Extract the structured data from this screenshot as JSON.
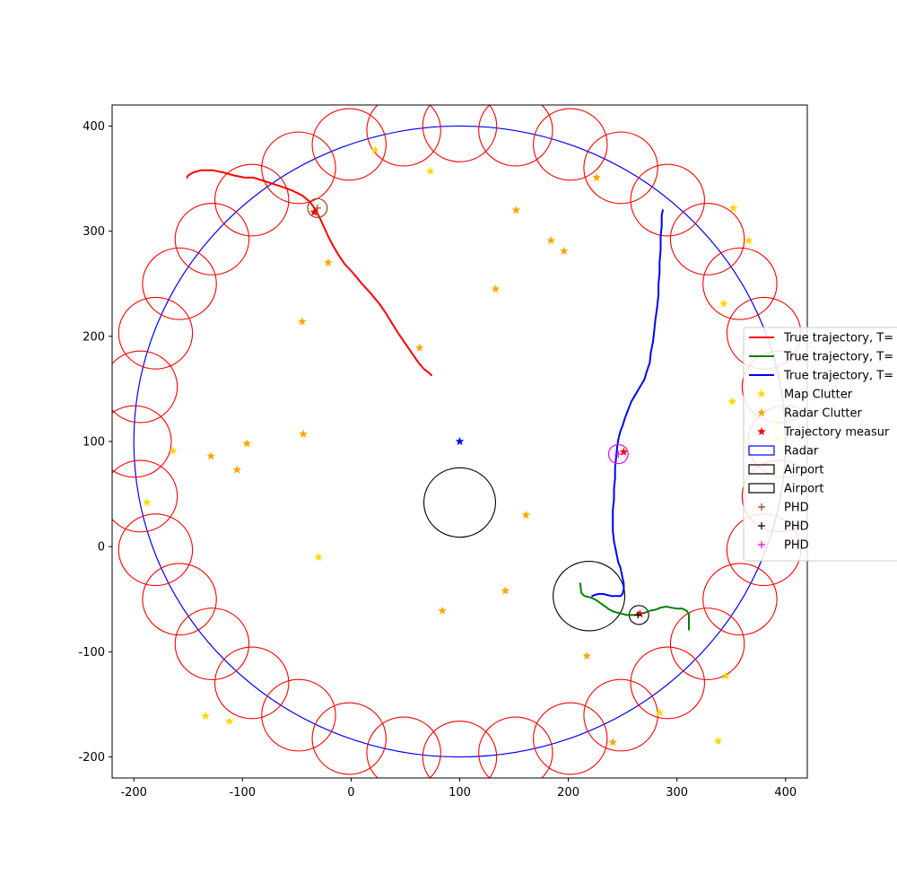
{
  "chart_data": {
    "type": "scatter",
    "title": "",
    "xlabel": "",
    "ylabel": "",
    "xlim": [
      -220,
      420
    ],
    "ylim": [
      -220,
      420
    ],
    "xticks": [
      -200,
      -100,
      0,
      100,
      200,
      300,
      400
    ],
    "yticks": [
      -200,
      -100,
      0,
      100,
      200,
      300,
      400
    ],
    "grid": false,
    "legend_position": "right (partially cut off)",
    "radar": {
      "center": [
        100,
        100
      ],
      "radius": 300,
      "color": "#0000ff"
    },
    "radar_point": {
      "x": 100,
      "y": 100,
      "color": "#0000ff"
    },
    "airports": [
      {
        "center": [
          100,
          42
        ],
        "radius": 33,
        "color": "#000000"
      },
      {
        "center": [
          219,
          -47
        ],
        "radius": 33,
        "color": "#000000"
      },
      {
        "center": [
          265,
          -65
        ],
        "radius": 9,
        "color": "#000000"
      }
    ],
    "map_clutter_rings": {
      "color": "#ff0000",
      "radius": 34,
      "centers": [
        [
          100,
          400
        ],
        [
          151.5,
          396
        ],
        [
          201.8,
          382.5
        ],
        [
          248.3,
          360.3
        ],
        [
          291.4,
          329.5
        ],
        [
          328,
          292.5
        ],
        [
          358,
          250
        ],
        [
          380,
          203
        ],
        [
          394,
          152
        ],
        [
          399.5,
          100
        ],
        [
          394,
          48
        ],
        [
          380,
          -3
        ],
        [
          358,
          -50
        ],
        [
          328,
          -92.5
        ],
        [
          291.4,
          -129.5
        ],
        [
          248.3,
          -160.3
        ],
        [
          201.8,
          -182.5
        ],
        [
          151.5,
          -196
        ],
        [
          100,
          -200
        ],
        [
          48.5,
          -196
        ],
        [
          -1.8,
          -182.5
        ],
        [
          -48.3,
          -160.3
        ],
        [
          -91.4,
          -129.5
        ],
        [
          -128,
          -92.5
        ],
        [
          -158,
          -50
        ],
        [
          -180,
          -3
        ],
        [
          -194,
          48
        ],
        [
          -199.5,
          100
        ],
        [
          -194,
          152
        ],
        [
          -180,
          203
        ],
        [
          -158,
          250
        ],
        [
          -128,
          292.5
        ],
        [
          -91.4,
          329.5
        ],
        [
          -48.3,
          360.3
        ],
        [
          -1.8,
          382.5
        ],
        [
          48.5,
          396
        ]
      ]
    },
    "legend": [
      {
        "label": "True trajectory, T=",
        "kind": "line",
        "color": "#ff0000"
      },
      {
        "label": "True trajectory, T=",
        "kind": "line",
        "color": "#008000"
      },
      {
        "label": "True trajectory, T=",
        "kind": "line",
        "color": "#0000ff"
      },
      {
        "label": "Map Clutter",
        "kind": "star",
        "color": "#ffd700"
      },
      {
        "label": "Radar Clutter",
        "kind": "star",
        "color": "#ffa500"
      },
      {
        "label": "Trajectory measur",
        "kind": "star",
        "color": "#ff0000"
      },
      {
        "label": "Radar",
        "kind": "rect",
        "color": "#0000ff"
      },
      {
        "label": "Airport",
        "kind": "rect",
        "color": "#000000"
      },
      {
        "label": "Airport",
        "kind": "rect",
        "color": "#000000"
      },
      {
        "label": "PHD",
        "kind": "plus",
        "color": "#8b4513"
      },
      {
        "label": "PHD",
        "kind": "plus",
        "color": "#000000"
      },
      {
        "label": "PHD",
        "kind": "plus",
        "color": "#ff00ff"
      }
    ],
    "series": [
      {
        "kind": "line",
        "color": "#ff0000",
        "x": [
          -151,
          -150,
          -145,
          -138,
          -128,
          -118,
          -108,
          -98,
          -90,
          -78,
          -66,
          -55,
          -45,
          -38,
          -33,
          -29,
          -25,
          -21,
          -17,
          -12,
          -6,
          2,
          10,
          18,
          26,
          32,
          38,
          44,
          50,
          56,
          62,
          67,
          72,
          74
        ],
        "y": [
          351,
          353,
          356,
          358,
          358,
          356,
          353,
          351,
          351,
          347,
          343,
          339,
          334,
          328,
          321,
          313,
          304,
          295,
          287,
          278,
          269,
          260,
          250,
          241,
          231,
          222,
          212,
          202,
          193,
          184,
          175,
          169,
          165,
          163
        ]
      },
      {
        "kind": "line",
        "color": "#008000",
        "x": [
          211,
          212,
          215,
          219,
          222,
          226,
          230,
          234,
          238,
          242,
          246,
          250,
          254,
          258,
          262,
          266,
          270,
          275,
          280,
          285,
          290,
          295,
          300,
          305,
          309,
          311,
          311,
          311
        ],
        "y": [
          -35,
          -44,
          -47,
          -48,
          -49,
          -51,
          -54,
          -57,
          -60,
          -62,
          -63,
          -64,
          -65,
          -65,
          -65,
          -64,
          -63,
          -61,
          -60,
          -58,
          -57,
          -58,
          -59,
          -59,
          -61,
          -64,
          -71,
          -79
        ]
      },
      {
        "kind": "line",
        "color": "#0000ff",
        "x": [
          287,
          286,
          286,
          285,
          285,
          284,
          284,
          283,
          283,
          282,
          281,
          280,
          279,
          278,
          276,
          275,
          272,
          270,
          266,
          262,
          258,
          255,
          252,
          250,
          248,
          246,
          245,
          244,
          243,
          243,
          242,
          242,
          241,
          241,
          241,
          242,
          243,
          244,
          245,
          246,
          248,
          249,
          250,
          251,
          251,
          250,
          248,
          244,
          240,
          236,
          232,
          228,
          224,
          222
        ],
        "y": [
          320,
          315,
          305,
          295,
          282,
          270,
          260,
          250,
          240,
          230,
          222,
          215,
          205,
          195,
          185,
          175,
          166,
          159,
          152,
          145,
          138,
          130,
          122,
          115,
          110,
          102,
          95,
          85,
          75,
          65,
          55,
          45,
          35,
          25,
          15,
          5,
          0,
          -5,
          -10,
          -15,
          -20,
          -25,
          -30,
          -35,
          -40,
          -45,
          -47,
          -47,
          -47,
          -46,
          -45,
          -45,
          -46,
          -47
        ]
      },
      {
        "kind": "star",
        "color": "#ffd700",
        "x": [
          22,
          73,
          352,
          366,
          343,
          351,
          390,
          393,
          390,
          -164,
          -188,
          -134,
          -112,
          -30,
          284,
          345,
          338
        ],
        "y": [
          377,
          357,
          322,
          291,
          231,
          138,
          118,
          102,
          72,
          91,
          42,
          -161,
          -166,
          -10,
          -158,
          -123,
          -185
        ]
      },
      {
        "kind": "star",
        "color": "#ffa500",
        "x": [
          226,
          152,
          184,
          196,
          133,
          -21,
          -45,
          63,
          -44,
          -129,
          -96,
          -105,
          161,
          142,
          84,
          217,
          241
        ],
        "y": [
          351,
          320,
          291,
          281,
          245,
          270,
          214,
          189,
          107,
          86,
          98,
          73,
          30,
          -42,
          -61,
          -104,
          -186
        ]
      },
      {
        "kind": "star",
        "color": "#ff0000",
        "x": [
          -34,
          251,
          266
        ],
        "y": [
          318,
          90,
          -64
        ]
      },
      {
        "kind": "star",
        "color": "#0000ff",
        "x": [
          100
        ],
        "y": [
          100
        ]
      }
    ],
    "phd_estimates": [
      {
        "x": -31,
        "y": 322,
        "color": "#8b4513",
        "ring_radius": 9
      },
      {
        "x": 264,
        "y": -65,
        "color": "#000000",
        "ring_radius": 0
      },
      {
        "x": 246,
        "y": 88,
        "color": "#ff00ff",
        "ring_radius": 9
      }
    ]
  }
}
